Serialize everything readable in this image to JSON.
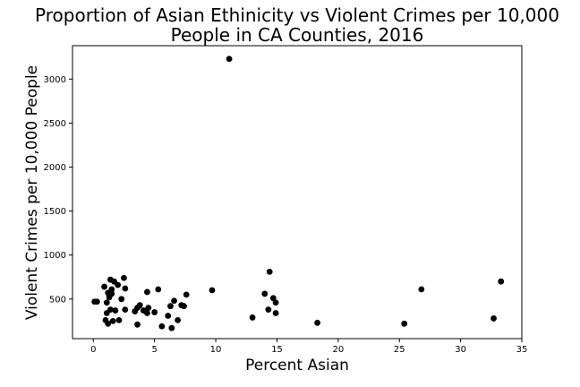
{
  "chart_data": {
    "type": "scatter",
    "title": "Proportion of Asian Ethinicity vs Violent Crimes per 10,000\nPeople in CA Counties, 2016",
    "xlabel": "Percent Asian",
    "ylabel": "Violent Crimes per 10,000 People",
    "xlim": [
      -1.7,
      35
    ],
    "ylim": [
      50,
      3380
    ],
    "xticks": [
      0,
      5,
      10,
      15,
      20,
      25,
      30,
      35
    ],
    "yticks": [
      500,
      1000,
      1500,
      2000,
      2500,
      3000
    ],
    "grid": false,
    "marker_color": "#000000",
    "points": [
      {
        "x": 0.1,
        "y": 470
      },
      {
        "x": 0.3,
        "y": 470
      },
      {
        "x": 0.9,
        "y": 640
      },
      {
        "x": 1.0,
        "y": 260
      },
      {
        "x": 1.1,
        "y": 460
      },
      {
        "x": 1.1,
        "y": 340
      },
      {
        "x": 1.2,
        "y": 570
      },
      {
        "x": 1.2,
        "y": 220
      },
      {
        "x": 1.3,
        "y": 520
      },
      {
        "x": 1.4,
        "y": 720
      },
      {
        "x": 1.4,
        "y": 380
      },
      {
        "x": 1.5,
        "y": 560
      },
      {
        "x": 1.5,
        "y": 610
      },
      {
        "x": 1.6,
        "y": 250
      },
      {
        "x": 1.7,
        "y": 700
      },
      {
        "x": 1.8,
        "y": 370
      },
      {
        "x": 2.0,
        "y": 660
      },
      {
        "x": 2.1,
        "y": 260
      },
      {
        "x": 2.3,
        "y": 500
      },
      {
        "x": 2.5,
        "y": 740
      },
      {
        "x": 2.6,
        "y": 620
      },
      {
        "x": 2.6,
        "y": 380
      },
      {
        "x": 3.4,
        "y": 360
      },
      {
        "x": 3.6,
        "y": 400
      },
      {
        "x": 3.6,
        "y": 210
      },
      {
        "x": 3.8,
        "y": 430
      },
      {
        "x": 4.1,
        "y": 370
      },
      {
        "x": 4.4,
        "y": 580
      },
      {
        "x": 4.4,
        "y": 340
      },
      {
        "x": 4.5,
        "y": 400
      },
      {
        "x": 5.0,
        "y": 350
      },
      {
        "x": 5.3,
        "y": 610
      },
      {
        "x": 5.6,
        "y": 190
      },
      {
        "x": 6.1,
        "y": 310
      },
      {
        "x": 6.3,
        "y": 420
      },
      {
        "x": 6.4,
        "y": 170
      },
      {
        "x": 6.6,
        "y": 480
      },
      {
        "x": 6.9,
        "y": 260
      },
      {
        "x": 7.2,
        "y": 430
      },
      {
        "x": 7.4,
        "y": 420
      },
      {
        "x": 7.6,
        "y": 550
      },
      {
        "x": 9.7,
        "y": 600
      },
      {
        "x": 11.1,
        "y": 3230
      },
      {
        "x": 13.0,
        "y": 290
      },
      {
        "x": 14.0,
        "y": 560
      },
      {
        "x": 14.3,
        "y": 380
      },
      {
        "x": 14.4,
        "y": 810
      },
      {
        "x": 14.7,
        "y": 510
      },
      {
        "x": 14.9,
        "y": 460
      },
      {
        "x": 14.9,
        "y": 340
      },
      {
        "x": 18.3,
        "y": 230
      },
      {
        "x": 25.4,
        "y": 220
      },
      {
        "x": 26.8,
        "y": 610
      },
      {
        "x": 32.7,
        "y": 280
      },
      {
        "x": 33.3,
        "y": 700
      }
    ]
  }
}
